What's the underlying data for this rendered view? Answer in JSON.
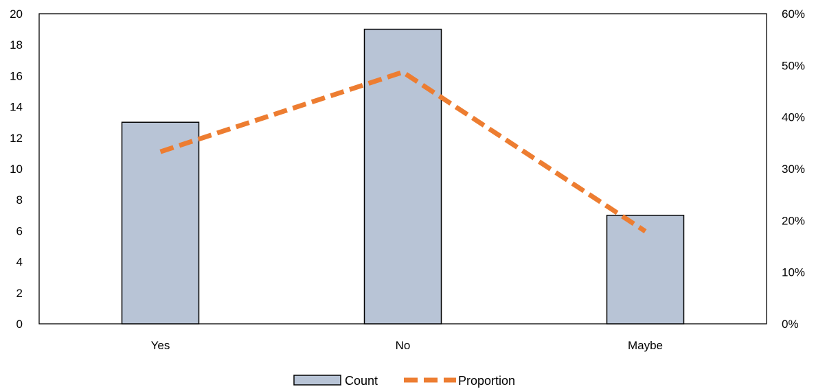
{
  "chart_data": {
    "type": "bar",
    "categories": [
      "Yes",
      "No",
      "Maybe"
    ],
    "series": [
      {
        "name": "Count",
        "type": "bar",
        "axis": "left",
        "values": [
          13,
          19,
          7
        ],
        "color": "#b8c4d6",
        "stroke": "#000000"
      },
      {
        "name": "Proportion",
        "type": "line",
        "axis": "right",
        "style": "dashed",
        "values": [
          0.333,
          0.487,
          0.179
        ],
        "color": "#ed7d31"
      }
    ],
    "y_left": {
      "min": 0,
      "max": 20,
      "step": 2
    },
    "y_right": {
      "min": 0,
      "max": 0.6,
      "step": 0.1,
      "format": "percent"
    },
    "grid": false,
    "legend_position": "bottom",
    "title": "",
    "xlabel": "",
    "ylabel": ""
  }
}
